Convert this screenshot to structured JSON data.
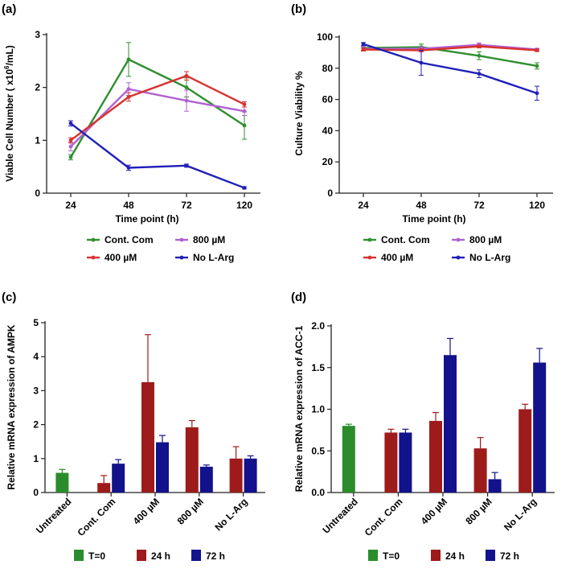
{
  "chart_data": [
    {
      "panel": "(a)",
      "type": "line",
      "title": "",
      "xlabel": "Time point (h)",
      "ylabel": "Viable Cell Number ( x10^6/mL)",
      "categories": [
        "24",
        "48",
        "72",
        "120"
      ],
      "ylim": [
        0,
        3
      ],
      "yticks": [
        "0",
        "1",
        "2",
        "3"
      ],
      "series": [
        {
          "name": "Cont. Com",
          "color": "#2f8f2f",
          "values": [
            0.68,
            2.53,
            2.0,
            1.28
          ],
          "errors": [
            0.05,
            0.32,
            0.18,
            0.26
          ]
        },
        {
          "name": "800 µM",
          "color": "#b062d0",
          "values": [
            0.88,
            1.97,
            1.75,
            1.55
          ],
          "errors": [
            0.08,
            0.12,
            0.2,
            0.08
          ]
        },
        {
          "name": "400 µM",
          "color": "#d8322f",
          "values": [
            1.0,
            1.82,
            2.22,
            1.68
          ],
          "errors": [
            0.05,
            0.08,
            0.08,
            0.05
          ]
        },
        {
          "name": "No L-Arg",
          "color": "#2020b8",
          "values": [
            1.32,
            0.48,
            0.52,
            0.1
          ],
          "errors": [
            0.05,
            0.05,
            0.03,
            0.02
          ]
        }
      ],
      "legend": [
        {
          "label": "Cont. Com",
          "color": "#2f8f2f"
        },
        {
          "label": "800 µM",
          "color": "#b062d0"
        },
        {
          "label": "400 µM",
          "color": "#d8322f"
        },
        {
          "label": "No L-Arg",
          "color": "#2020b8"
        }
      ]
    },
    {
      "panel": "(b)",
      "type": "line",
      "title": "",
      "xlabel": "Time point (h)",
      "ylabel": "Culture Viability %",
      "categories": [
        "24",
        "48",
        "72",
        "120"
      ],
      "ylim": [
        0,
        100
      ],
      "yticks": [
        "0",
        "20",
        "40",
        "60",
        "80",
        "100"
      ],
      "series": [
        {
          "name": "Cont. Com",
          "color": "#2f8f2f",
          "values": [
            93,
            93.5,
            88,
            81.5
          ],
          "errors": [
            1.5,
            2,
            2.5,
            2
          ]
        },
        {
          "name": "800 µM",
          "color": "#b062d0",
          "values": [
            92.5,
            92.5,
            95,
            92
          ],
          "errors": [
            1.5,
            1.5,
            1.2,
            0.8
          ]
        },
        {
          "name": "400 µM",
          "color": "#d8322f",
          "values": [
            92,
            91.5,
            94,
            91.5
          ],
          "errors": [
            1,
            1,
            1,
            0.8
          ]
        },
        {
          "name": "No L-Arg",
          "color": "#2020b8",
          "values": [
            95.5,
            83.5,
            76.5,
            64
          ],
          "errors": [
            1,
            8,
            2.5,
            4.5
          ]
        }
      ],
      "legend": [
        {
          "label": "Cont. Com",
          "color": "#2f8f2f"
        },
        {
          "label": "800 µM",
          "color": "#b062d0"
        },
        {
          "label": "400 µM",
          "color": "#d8322f"
        },
        {
          "label": "No L-Arg",
          "color": "#2020b8"
        }
      ]
    },
    {
      "panel": "(c)",
      "type": "bar",
      "title": "",
      "xlabel": "",
      "ylabel": "Relative mRNA expression of AMPK",
      "categories": [
        "Untreated",
        "Cont. Com",
        "400 µM",
        "800 µM",
        "No L-Arg"
      ],
      "ylim": [
        0,
        5
      ],
      "yticks": [
        "0",
        "1",
        "2",
        "3",
        "4",
        "5"
      ],
      "series": [
        {
          "name": "T=0",
          "color": "#2b8c2b",
          "values": [
            0.58,
            null,
            null,
            null,
            null
          ],
          "errors": [
            0.1,
            null,
            null,
            null,
            null
          ]
        },
        {
          "name": "24 h",
          "color": "#9e1b1b",
          "values": [
            null,
            0.28,
            3.25,
            1.92,
            1.0
          ],
          "errors": [
            null,
            0.22,
            1.4,
            0.2,
            0.35
          ]
        },
        {
          "name": "72 h",
          "color": "#12128c",
          "values": [
            null,
            0.85,
            1.48,
            0.76,
            1.0
          ],
          "errors": [
            null,
            0.12,
            0.2,
            0.05,
            0.08
          ]
        }
      ],
      "legend": [
        {
          "label": "T=0",
          "color": "#2b8c2b"
        },
        {
          "label": "24 h",
          "color": "#9e1b1b"
        },
        {
          "label": "72 h",
          "color": "#12128c"
        }
      ]
    },
    {
      "panel": "(d)",
      "type": "bar",
      "title": "",
      "xlabel": "",
      "ylabel": "Relative mRNA expression of ACC-1",
      "categories": [
        "Untreated",
        "Cont. Com",
        "400 µM",
        "800 µM",
        "No L-Arg"
      ],
      "ylim": [
        0,
        2
      ],
      "yticks": [
        "0.0",
        "0.5",
        "1.0",
        "1.5",
        "2.0"
      ],
      "series": [
        {
          "name": "T=0",
          "color": "#2b8c2b",
          "values": [
            0.8,
            null,
            null,
            null,
            null
          ],
          "errors": [
            0.02,
            null,
            null,
            null,
            null
          ]
        },
        {
          "name": "24 h",
          "color": "#9e1b1b",
          "values": [
            null,
            0.72,
            0.86,
            0.53,
            1.0
          ],
          "errors": [
            null,
            0.04,
            0.1,
            0.13,
            0.06
          ]
        },
        {
          "name": "72 h",
          "color": "#12128c",
          "values": [
            null,
            0.72,
            1.65,
            0.16,
            1.56
          ],
          "errors": [
            null,
            0.04,
            0.2,
            0.08,
            0.17
          ]
        }
      ],
      "legend": [
        {
          "label": "T=0",
          "color": "#2b8c2b"
        },
        {
          "label": "24 h",
          "color": "#9e1b1b"
        },
        {
          "label": "72 h",
          "color": "#12128c"
        }
      ]
    }
  ]
}
